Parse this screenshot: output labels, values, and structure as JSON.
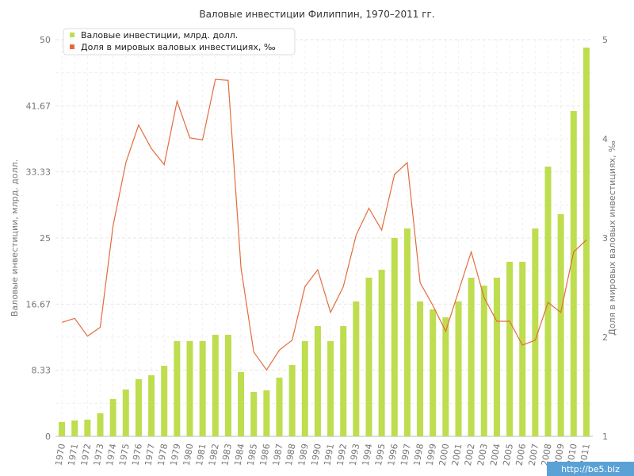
{
  "chart_data": {
    "type": "bar+line",
    "title": "Валовые инвестиции Филиппин, 1970–2011 гг.",
    "ylabel_left": "Валовые инвестиции, млрд. долл.",
    "ylabel_right": "Доля в мировых валовых инвестициях, ‰",
    "ylim_left": [
      0,
      50
    ],
    "yticks_left": [
      "0",
      "8.33",
      "16.67",
      "25",
      "33.33",
      "41.67",
      "50"
    ],
    "ylim_right": [
      1,
      5
    ],
    "yticks_right": [
      "1",
      "2",
      "3",
      "4",
      "5"
    ],
    "grid": true,
    "legend_position": "top-left",
    "categories": [
      "1970",
      "1971",
      "1972",
      "1973",
      "1974",
      "1975",
      "1976",
      "1977",
      "1978",
      "1979",
      "1980",
      "1981",
      "1982",
      "1983",
      "1984",
      "1985",
      "1986",
      "1987",
      "1988",
      "1989",
      "1990",
      "1991",
      "1992",
      "1993",
      "1994",
      "1995",
      "1996",
      "1997",
      "1998",
      "1999",
      "2000",
      "2001",
      "2002",
      "2003",
      "2004",
      "2005",
      "2006",
      "2007",
      "2008",
      "2009",
      "2010",
      "2011"
    ],
    "series": [
      {
        "name": "Валовые инвестиции, млрд. долл.",
        "kind": "bar",
        "axis": "left",
        "color": "#bedd4f",
        "values": [
          1.8,
          2.0,
          2.1,
          2.9,
          4.7,
          5.9,
          7.2,
          7.7,
          8.9,
          12.0,
          12.0,
          12.0,
          12.8,
          12.8,
          8.1,
          5.6,
          5.8,
          7.4,
          9.0,
          12.0,
          13.9,
          12.0,
          13.9,
          17.0,
          20.0,
          21.0,
          25.0,
          26.2,
          17.0,
          16.0,
          15.0,
          17.0,
          20.0,
          19.0,
          20.0,
          22.0,
          22.0,
          26.2,
          34.0,
          28.0,
          41.0,
          49.0
        ]
      },
      {
        "name": "Доля в мировых валовых инвестициях, ‰",
        "kind": "line",
        "axis": "right",
        "color": "#e36c3c",
        "values": [
          2.15,
          2.19,
          2.01,
          2.1,
          3.12,
          3.76,
          4.14,
          3.9,
          3.74,
          4.38,
          4.01,
          3.99,
          4.6,
          4.59,
          2.7,
          1.85,
          1.67,
          1.87,
          1.97,
          2.51,
          2.68,
          2.25,
          2.51,
          3.03,
          3.3,
          3.08,
          3.64,
          3.76,
          2.55,
          2.32,
          2.06,
          2.46,
          2.86,
          2.4,
          2.16,
          2.16,
          1.92,
          1.97,
          2.35,
          2.25,
          2.86,
          2.98
        ]
      }
    ]
  },
  "watermark": "http://be5.biz"
}
